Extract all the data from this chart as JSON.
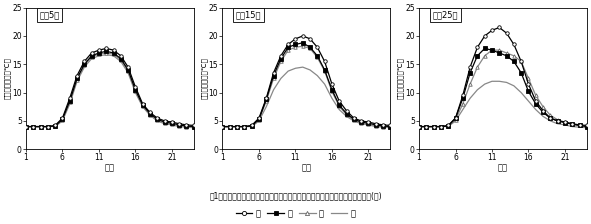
{
  "panels": [
    {
      "title": "尾斜5度",
      "south": [
        4.0,
        4.0,
        4.0,
        4.0,
        4.2,
        5.5,
        9.0,
        13.0,
        15.5,
        17.0,
        17.5,
        17.8,
        17.5,
        16.5,
        14.5,
        11.0,
        8.0,
        6.5,
        5.5,
        5.0,
        4.8,
        4.5,
        4.3,
        4.2
      ],
      "east": [
        4.0,
        4.0,
        4.0,
        4.0,
        4.1,
        5.3,
        8.5,
        12.5,
        15.0,
        16.5,
        17.0,
        17.3,
        17.0,
        16.0,
        14.0,
        10.5,
        7.8,
        6.3,
        5.3,
        4.8,
        4.6,
        4.3,
        4.1,
        4.0
      ],
      "west": [
        4.0,
        4.0,
        4.0,
        4.0,
        4.1,
        5.2,
        8.3,
        12.3,
        14.8,
        16.3,
        16.8,
        17.0,
        16.8,
        15.8,
        13.8,
        10.3,
        7.6,
        6.1,
        5.1,
        4.6,
        4.4,
        4.1,
        4.0,
        3.9
      ],
      "north": [
        4.0,
        4.0,
        4.0,
        4.0,
        4.0,
        5.0,
        8.0,
        12.0,
        14.5,
        16.0,
        16.5,
        16.7,
        16.5,
        15.5,
        13.5,
        10.0,
        7.5,
        6.0,
        5.0,
        4.5,
        4.3,
        4.0,
        3.9,
        3.8
      ]
    },
    {
      "title": "尾斜15度",
      "south": [
        4.0,
        4.0,
        4.0,
        4.0,
        4.2,
        5.5,
        9.0,
        13.5,
        16.5,
        18.5,
        19.5,
        20.0,
        19.5,
        18.0,
        15.5,
        11.5,
        8.5,
        6.8,
        5.5,
        5.0,
        4.8,
        4.5,
        4.3,
        4.2
      ],
      "east": [
        4.0,
        4.0,
        4.0,
        4.0,
        4.1,
        5.3,
        8.8,
        13.0,
        16.0,
        18.0,
        18.5,
        18.8,
        18.0,
        16.5,
        14.0,
        10.5,
        7.8,
        6.3,
        5.3,
        4.8,
        4.6,
        4.3,
        4.1,
        4.0
      ],
      "west": [
        4.0,
        4.0,
        4.0,
        4.0,
        4.1,
        5.2,
        8.5,
        12.5,
        15.5,
        17.5,
        18.0,
        18.2,
        17.8,
        16.2,
        13.8,
        10.2,
        7.6,
        6.1,
        5.1,
        4.6,
        4.4,
        4.1,
        4.0,
        3.9
      ],
      "north": [
        4.0,
        4.0,
        4.0,
        4.0,
        4.0,
        5.0,
        7.5,
        10.5,
        12.5,
        13.8,
        14.3,
        14.5,
        14.0,
        13.0,
        11.5,
        9.0,
        7.0,
        5.8,
        5.0,
        4.5,
        4.3,
        4.0,
        3.9,
        3.8
      ]
    },
    {
      "title": "尾斜25度",
      "south": [
        4.0,
        4.0,
        4.0,
        4.0,
        4.2,
        5.5,
        9.5,
        14.5,
        18.0,
        20.0,
        21.0,
        21.5,
        20.5,
        18.5,
        15.5,
        11.5,
        8.5,
        6.8,
        5.5,
        5.0,
        4.8,
        4.5,
        4.3,
        4.2
      ],
      "east": [
        4.0,
        4.0,
        4.0,
        4.0,
        4.1,
        5.5,
        9.0,
        13.5,
        16.5,
        17.8,
        17.5,
        17.0,
        16.5,
        15.5,
        13.5,
        10.2,
        8.0,
        6.5,
        5.5,
        5.0,
        4.7,
        4.4,
        4.2,
        4.0
      ],
      "west": [
        4.0,
        4.0,
        4.0,
        4.0,
        4.1,
        5.2,
        8.0,
        11.5,
        14.5,
        16.5,
        17.5,
        17.5,
        17.0,
        16.5,
        15.5,
        12.5,
        9.5,
        7.5,
        6.0,
        5.2,
        4.8,
        4.5,
        4.2,
        4.0
      ],
      "north": [
        4.0,
        4.0,
        4.0,
        4.0,
        4.0,
        5.0,
        7.0,
        9.0,
        10.5,
        11.5,
        12.0,
        12.0,
        11.8,
        11.2,
        10.0,
        8.5,
        7.0,
        5.8,
        5.0,
        4.5,
        4.3,
        4.0,
        3.9,
        3.8
      ]
    }
  ],
  "hours": [
    1,
    2,
    3,
    4,
    5,
    6,
    7,
    8,
    9,
    10,
    11,
    12,
    13,
    14,
    15,
    16,
    17,
    18,
    19,
    20,
    21,
    22,
    23,
    24
  ],
  "xticks": [
    1,
    6,
    11,
    16,
    21
  ],
  "yticks": [
    0,
    5,
    10,
    15,
    20,
    25
  ],
  "ylim": [
    0,
    25
  ],
  "xlabel": "時刻",
  "ylabel": "ハウス内気温（℃）",
  "caption": "図1　尾斜角度の異なる斜面における各尾斜方位ごとのハウス内気温の日変化(冬)",
  "leg_south": "南",
  "leg_east": "東",
  "leg_west": "西",
  "leg_north": "北"
}
